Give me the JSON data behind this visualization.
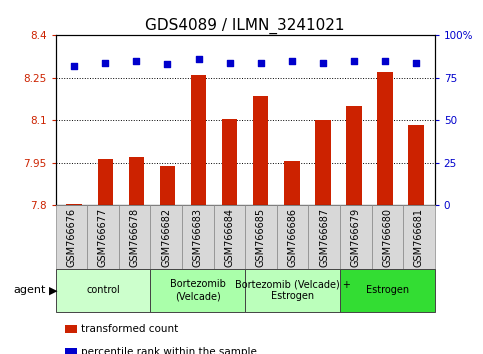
{
  "title": "GDS4089 / ILMN_3241021",
  "samples": [
    "GSM766676",
    "GSM766677",
    "GSM766678",
    "GSM766682",
    "GSM766683",
    "GSM766684",
    "GSM766685",
    "GSM766686",
    "GSM766687",
    "GSM766679",
    "GSM766680",
    "GSM766681"
  ],
  "bar_values": [
    7.806,
    7.963,
    7.97,
    7.94,
    8.26,
    8.105,
    8.185,
    7.958,
    8.1,
    8.15,
    8.27,
    8.085
  ],
  "percentile_values": [
    82,
    84,
    85,
    83,
    86,
    84,
    84,
    85,
    84,
    85,
    85,
    84
  ],
  "bar_color": "#cc2200",
  "dot_color": "#0000cc",
  "ylim_left": [
    7.8,
    8.4
  ],
  "ylim_right": [
    0,
    100
  ],
  "yticks_left": [
    7.8,
    7.95,
    8.1,
    8.25,
    8.4
  ],
  "yticks_right": [
    0,
    25,
    50,
    75,
    100
  ],
  "ytick_labels_left": [
    "7.8",
    "7.95",
    "8.1",
    "8.25",
    "8.4"
  ],
  "ytick_labels_right": [
    "0",
    "25",
    "50",
    "75",
    "100%"
  ],
  "groups": [
    {
      "label": "control",
      "start": 0,
      "end": 3,
      "color": "#ccffcc"
    },
    {
      "label": "Bortezomib\n(Velcade)",
      "start": 3,
      "end": 6,
      "color": "#aaffaa"
    },
    {
      "label": "Bortezomib (Velcade) +\nEstrogen",
      "start": 6,
      "end": 9,
      "color": "#bbffbb"
    },
    {
      "label": "Estrogen",
      "start": 9,
      "end": 12,
      "color": "#33dd33"
    }
  ],
  "legend_items": [
    {
      "label": "transformed count",
      "color": "#cc2200"
    },
    {
      "label": "percentile rank within the sample",
      "color": "#0000cc"
    }
  ],
  "title_fontsize": 11,
  "tick_label_fontsize": 7,
  "bar_width": 0.5
}
